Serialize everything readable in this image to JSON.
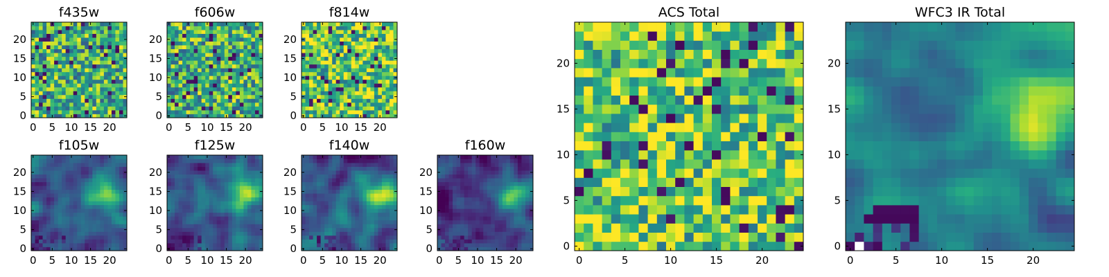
{
  "chart_data": [
    {
      "type": "heatmap",
      "title": "f435w",
      "xticks": [
        0,
        5,
        10,
        15,
        20
      ],
      "yticks": [
        0,
        5,
        10,
        15,
        20
      ],
      "xlim": [
        -0.5,
        24.5
      ],
      "ylim": [
        -0.5,
        24.5
      ],
      "grid_size": 25,
      "colormap": "viridis",
      "pattern": "noise",
      "seed": 435
    },
    {
      "type": "heatmap",
      "title": "f606w",
      "xticks": [
        0,
        5,
        10,
        15,
        20
      ],
      "yticks": [
        0,
        5,
        10,
        15,
        20
      ],
      "xlim": [
        -0.5,
        24.5
      ],
      "ylim": [
        -0.5,
        24.5
      ],
      "grid_size": 25,
      "colormap": "viridis",
      "pattern": "noise",
      "seed": 606
    },
    {
      "type": "heatmap",
      "title": "f814w",
      "xticks": [
        0,
        5,
        10,
        15,
        20
      ],
      "yticks": [
        0,
        5,
        10,
        15,
        20
      ],
      "xlim": [
        -0.5,
        24.5
      ],
      "ylim": [
        -0.5,
        24.5
      ],
      "grid_size": 25,
      "colormap": "viridis",
      "pattern": "noise_bright",
      "seed": 814
    },
    {
      "type": "heatmap",
      "title": "f105w",
      "xticks": [
        0,
        5,
        10,
        15,
        20
      ],
      "yticks": [
        0,
        5,
        10,
        15,
        20
      ],
      "xlim": [
        -0.5,
        24.5
      ],
      "ylim": [
        -0.5,
        24.5
      ],
      "grid_size": 25,
      "colormap": "viridis",
      "pattern": "smooth",
      "seed": 105
    },
    {
      "type": "heatmap",
      "title": "f125w",
      "xticks": [
        0,
        5,
        10,
        15,
        20
      ],
      "yticks": [
        0,
        5,
        10,
        15,
        20
      ],
      "xlim": [
        -0.5,
        24.5
      ],
      "ylim": [
        -0.5,
        24.5
      ],
      "grid_size": 25,
      "colormap": "viridis",
      "pattern": "smooth",
      "seed": 125
    },
    {
      "type": "heatmap",
      "title": "f140w",
      "xticks": [
        0,
        5,
        10,
        15,
        20
      ],
      "yticks": [
        0,
        5,
        10,
        15,
        20
      ],
      "xlim": [
        -0.5,
        24.5
      ],
      "ylim": [
        -0.5,
        24.5
      ],
      "grid_size": 25,
      "colormap": "viridis",
      "pattern": "smooth",
      "seed": 140
    },
    {
      "type": "heatmap",
      "title": "f160w",
      "xticks": [
        0,
        5,
        10,
        15,
        20
      ],
      "yticks": [
        0,
        5,
        10,
        15,
        20
      ],
      "xlim": [
        -0.5,
        24.5
      ],
      "ylim": [
        -0.5,
        24.5
      ],
      "grid_size": 25,
      "colormap": "viridis",
      "pattern": "smooth_dark",
      "seed": 160
    },
    {
      "type": "heatmap",
      "title": "ACS Total",
      "xticks": [
        0,
        5,
        10,
        15,
        20
      ],
      "yticks": [
        0,
        5,
        10,
        15,
        20
      ],
      "xlim": [
        -0.5,
        24.5
      ],
      "ylim": [
        -0.5,
        24.5
      ],
      "grid_size": 25,
      "colormap": "viridis",
      "pattern": "noise_bright",
      "seed": 7
    },
    {
      "type": "heatmap",
      "title": "WFC3 IR Total",
      "xticks": [
        0,
        5,
        10,
        15,
        20
      ],
      "yticks": [
        0,
        5,
        10,
        15,
        20
      ],
      "xlim": [
        -0.5,
        24.5
      ],
      "ylim": [
        -0.5,
        24.5
      ],
      "grid_size": 25,
      "colormap": "viridis",
      "pattern": "smooth_ir",
      "seed": 33
    }
  ]
}
